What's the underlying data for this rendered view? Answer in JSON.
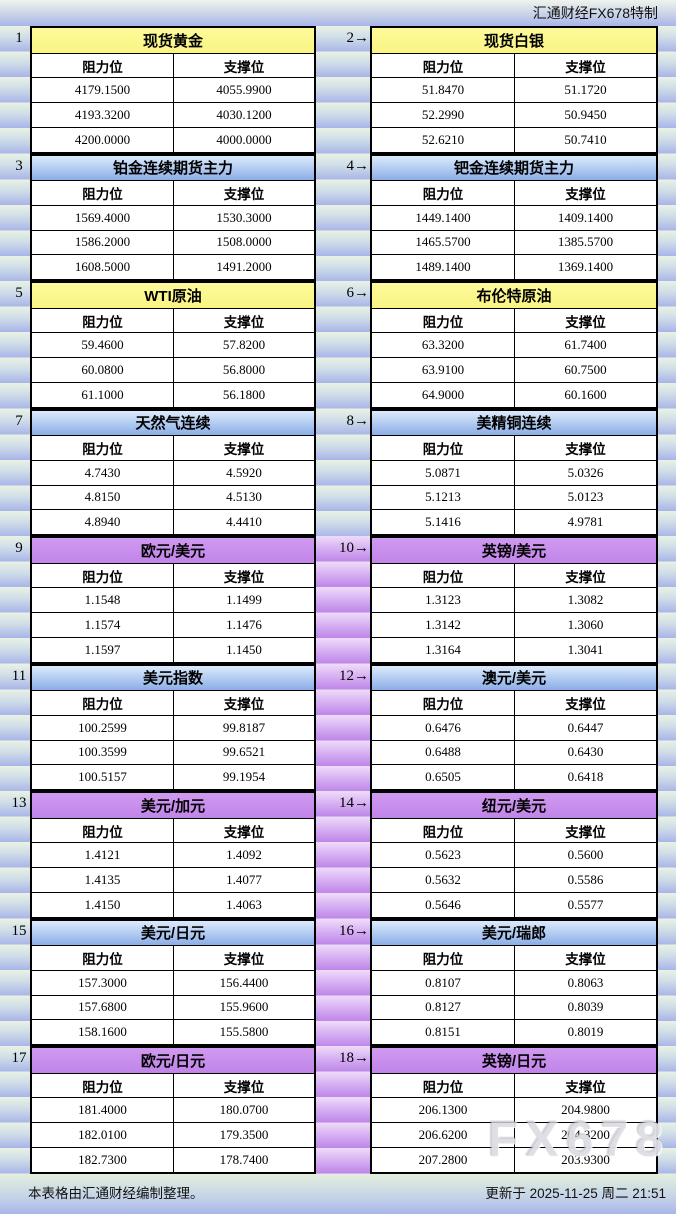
{
  "top_bar": {
    "title": "汇通财经FX678特制"
  },
  "labels": {
    "resistance": "阻力位",
    "support": "支撑位"
  },
  "watermark": "FX678",
  "footer": {
    "note": "本表格由汇通财经编制整理。",
    "updated": "更新于 2025-11-25 周二 21:51"
  },
  "colors": {
    "periwinkle": "#a9b5e8",
    "pale_green": "#e9f2e4",
    "yellow_header": "#fbf78c",
    "blue_header_top": "#dcebfc",
    "blue_header_bottom": "#8bade6",
    "purple_header": "#c78ceb",
    "purple_gutter": "#bd86e8",
    "border": "#000000",
    "cell_bg": "#ffffff"
  },
  "sections": [
    {
      "gutter_purple": false,
      "left": {
        "num": "1",
        "title": "现货黄金",
        "style": "yellow",
        "rows": [
          [
            "4179.1500",
            "4055.9900"
          ],
          [
            "4193.3200",
            "4030.1200"
          ],
          [
            "4200.0000",
            "4000.0000"
          ]
        ]
      },
      "right": {
        "num": "2→",
        "title": "现货白银",
        "style": "yellow",
        "rows": [
          [
            "51.8470",
            "51.1720"
          ],
          [
            "52.2990",
            "50.9450"
          ],
          [
            "52.6210",
            "50.7410"
          ]
        ]
      }
    },
    {
      "gutter_purple": false,
      "left": {
        "num": "3",
        "title": "铂金连续期货主力",
        "style": "blue",
        "rows": [
          [
            "1569.4000",
            "1530.3000"
          ],
          [
            "1586.2000",
            "1508.0000"
          ],
          [
            "1608.5000",
            "1491.2000"
          ]
        ]
      },
      "right": {
        "num": "4→",
        "title": "钯金连续期货主力",
        "style": "blue",
        "rows": [
          [
            "1449.1400",
            "1409.1400"
          ],
          [
            "1465.5700",
            "1385.5700"
          ],
          [
            "1489.1400",
            "1369.1400"
          ]
        ]
      }
    },
    {
      "gutter_purple": false,
      "left": {
        "num": "5",
        "title": "WTI原油",
        "style": "yellow",
        "rows": [
          [
            "59.4600",
            "57.8200"
          ],
          [
            "60.0800",
            "56.8000"
          ],
          [
            "61.1000",
            "56.1800"
          ]
        ]
      },
      "right": {
        "num": "6→",
        "title": "布伦特原油",
        "style": "yellow",
        "rows": [
          [
            "63.3200",
            "61.7400"
          ],
          [
            "63.9100",
            "60.7500"
          ],
          [
            "64.9000",
            "60.1600"
          ]
        ]
      }
    },
    {
      "gutter_purple": false,
      "left": {
        "num": "7",
        "title": "天然气连续",
        "style": "blue",
        "rows": [
          [
            "4.7430",
            "4.5920"
          ],
          [
            "4.8150",
            "4.5130"
          ],
          [
            "4.8940",
            "4.4410"
          ]
        ]
      },
      "right": {
        "num": "8→",
        "title": "美精铜连续",
        "style": "blue",
        "rows": [
          [
            "5.0871",
            "5.0326"
          ],
          [
            "5.1213",
            "5.0123"
          ],
          [
            "5.1416",
            "4.9781"
          ]
        ]
      }
    },
    {
      "gutter_purple": true,
      "left": {
        "num": "9",
        "title": "欧元/美元",
        "style": "purple",
        "rows": [
          [
            "1.1548",
            "1.1499"
          ],
          [
            "1.1574",
            "1.1476"
          ],
          [
            "1.1597",
            "1.1450"
          ]
        ]
      },
      "right": {
        "num": "10→",
        "title": "英镑/美元",
        "style": "purple",
        "rows": [
          [
            "1.3123",
            "1.3082"
          ],
          [
            "1.3142",
            "1.3060"
          ],
          [
            "1.3164",
            "1.3041"
          ]
        ]
      }
    },
    {
      "gutter_purple": true,
      "left": {
        "num": "11",
        "title": "美元指数",
        "style": "blue",
        "rows": [
          [
            "100.2599",
            "99.8187"
          ],
          [
            "100.3599",
            "99.6521"
          ],
          [
            "100.5157",
            "99.1954"
          ]
        ]
      },
      "right": {
        "num": "12→",
        "title": "澳元/美元",
        "style": "blue",
        "rows": [
          [
            "0.6476",
            "0.6447"
          ],
          [
            "0.6488",
            "0.6430"
          ],
          [
            "0.6505",
            "0.6418"
          ]
        ]
      }
    },
    {
      "gutter_purple": true,
      "left": {
        "num": "13",
        "title": "美元/加元",
        "style": "purple",
        "rows": [
          [
            "1.4121",
            "1.4092"
          ],
          [
            "1.4135",
            "1.4077"
          ],
          [
            "1.4150",
            "1.4063"
          ]
        ]
      },
      "right": {
        "num": "14→",
        "title": "纽元/美元",
        "style": "purple",
        "rows": [
          [
            "0.5623",
            "0.5600"
          ],
          [
            "0.5632",
            "0.5586"
          ],
          [
            "0.5646",
            "0.5577"
          ]
        ]
      }
    },
    {
      "gutter_purple": true,
      "left": {
        "num": "15",
        "title": "美元/日元",
        "style": "blue",
        "rows": [
          [
            "157.3000",
            "156.4400"
          ],
          [
            "157.6800",
            "155.9600"
          ],
          [
            "158.1600",
            "155.5800"
          ]
        ]
      },
      "right": {
        "num": "16→",
        "title": "美元/瑞郎",
        "style": "blue",
        "rows": [
          [
            "0.8107",
            "0.8063"
          ],
          [
            "0.8127",
            "0.8039"
          ],
          [
            "0.8151",
            "0.8019"
          ]
        ]
      }
    },
    {
      "gutter_purple": true,
      "left": {
        "num": "17",
        "title": "欧元/日元",
        "style": "purple",
        "rows": [
          [
            "181.4000",
            "180.0700"
          ],
          [
            "182.0100",
            "179.3500"
          ],
          [
            "182.7300",
            "178.7400"
          ]
        ]
      },
      "right": {
        "num": "18→",
        "title": "英镑/日元",
        "style": "purple",
        "rows": [
          [
            "206.1300",
            "204.9800"
          ],
          [
            "206.6200",
            "204.3200"
          ],
          [
            "207.2800",
            "203.9300"
          ]
        ]
      }
    }
  ]
}
